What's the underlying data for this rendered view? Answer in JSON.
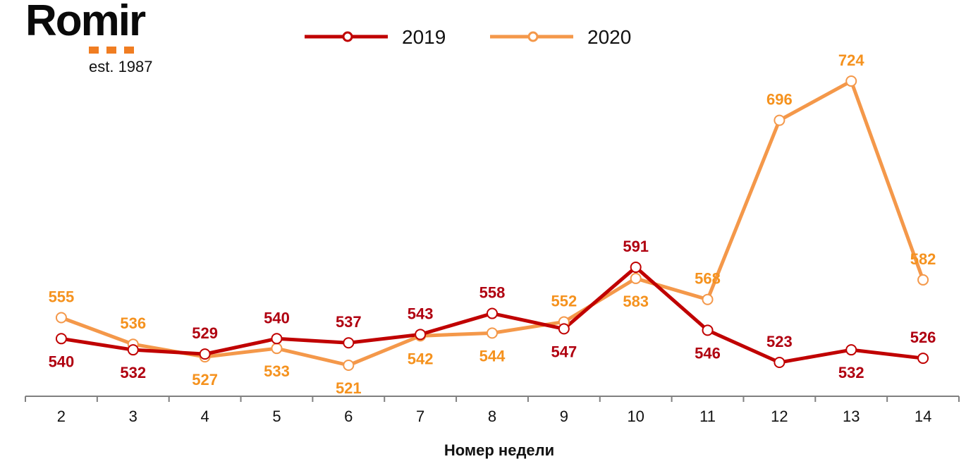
{
  "logo": {
    "word": "Romir",
    "tagline": "est. 1987"
  },
  "colors": {
    "s2019": "#c00000",
    "s2020": "#f4984a",
    "label2019": "#b00010",
    "label2020": "#f5921e",
    "axis": "#808080"
  },
  "chart_data": {
    "type": "line",
    "title": "",
    "xlabel": "Номер недели",
    "ylabel": "",
    "x": [
      2,
      3,
      4,
      5,
      6,
      7,
      8,
      9,
      10,
      11,
      12,
      13,
      14
    ],
    "categories": [
      "2",
      "3",
      "4",
      "5",
      "6",
      "7",
      "8",
      "9",
      "10",
      "11",
      "12",
      "13",
      "14"
    ],
    "series": [
      {
        "name": "2019",
        "values": [
          540,
          532,
          529,
          540,
          537,
          543,
          558,
          547,
          591,
          546,
          523,
          532,
          526
        ],
        "label_pos": [
          "below",
          "below",
          "above",
          "above",
          "above",
          "above",
          "above",
          "below",
          "above",
          "below",
          "above",
          "below",
          "above"
        ]
      },
      {
        "name": "2020",
        "values": [
          555,
          536,
          527,
          533,
          521,
          542,
          544,
          552,
          583,
          568,
          696,
          724,
          582
        ],
        "label_pos": [
          "above",
          "above",
          "below",
          "below",
          "below",
          "below",
          "below",
          "above",
          "below",
          "above",
          "above",
          "above",
          "above"
        ]
      }
    ],
    "legend": {
      "placement": "top-center",
      "entries": [
        "2019",
        "2020"
      ]
    },
    "grid": false,
    "y_axis_visible": false,
    "ylim": [
      505,
      740
    ]
  }
}
